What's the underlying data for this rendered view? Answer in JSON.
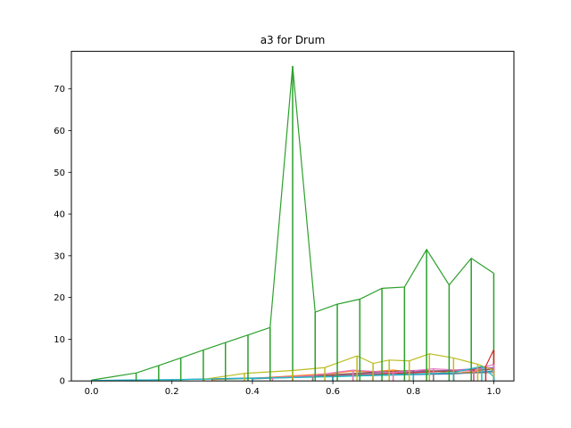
{
  "chart_data": {
    "type": "line",
    "title": "a3 for Drum",
    "xlabel": "",
    "ylabel": "",
    "xlim": [
      -0.05,
      1.05
    ],
    "ylim": [
      0,
      79
    ],
    "xticks": [
      0.0,
      0.2,
      0.4,
      0.6,
      0.8,
      1.0
    ],
    "xtick_labels": [
      "0.0",
      "0.2",
      "0.4",
      "0.6",
      "0.8",
      "1.0"
    ],
    "yticks": [
      0,
      10,
      20,
      30,
      40,
      50,
      60,
      70
    ],
    "ytick_labels": [
      "0",
      "10",
      "20",
      "30",
      "40",
      "50",
      "60",
      "70"
    ],
    "grid": false,
    "legend": "none",
    "series": [
      {
        "color": "#1f77b4",
        "x": [
          0.0,
          0.1,
          0.2,
          0.3,
          0.4,
          0.5,
          0.6,
          0.7,
          0.8,
          0.9,
          0.95,
          1.0
        ],
        "y": [
          0.1,
          0.2,
          0.3,
          0.5,
          0.7,
          0.9,
          1.1,
          1.3,
          1.5,
          1.7,
          2.0,
          2.4
        ]
      },
      {
        "color": "#ff7f0e",
        "x": [
          0.3,
          0.4,
          0.5,
          0.6,
          0.65,
          0.7,
          0.75,
          0.8,
          0.85,
          0.9,
          0.95,
          1.0
        ],
        "y": [
          0.3,
          0.6,
          1.2,
          1.8,
          2.4,
          2.2,
          2.6,
          2.0,
          2.4,
          1.8,
          2.2,
          3.0
        ]
      },
      {
        "color": "#2ca02c",
        "x": [
          0.0,
          0.111,
          0.167,
          0.222,
          0.278,
          0.333,
          0.389,
          0.444,
          0.5,
          0.556,
          0.611,
          0.667,
          0.722,
          0.778,
          0.833,
          0.889,
          0.944,
          1.0
        ],
        "y": [
          0.2,
          1.9,
          3.7,
          5.5,
          7.4,
          9.2,
          11.0,
          12.8,
          75.5,
          16.5,
          18.4,
          19.6,
          22.2,
          22.5,
          31.5,
          23.0,
          29.4,
          25.8
        ]
      },
      {
        "color": "#d62728",
        "x": [
          0.5,
          0.6,
          0.7,
          0.8,
          0.9,
          0.95,
          0.98,
          1.0
        ],
        "y": [
          0.8,
          1.2,
          1.6,
          2.0,
          2.4,
          2.8,
          3.5,
          7.5
        ]
      },
      {
        "color": "#9467bd",
        "x": [
          0.4,
          0.5,
          0.6,
          0.7,
          0.8,
          0.9,
          1.0
        ],
        "y": [
          0.6,
          1.0,
          1.4,
          1.9,
          2.2,
          2.6,
          3.2
        ]
      },
      {
        "color": "#8c564b",
        "x": [
          0.5,
          0.6,
          0.7,
          0.8,
          0.9,
          1.0
        ],
        "y": [
          0.9,
          1.5,
          2.1,
          2.5,
          2.3,
          2.8
        ]
      },
      {
        "color": "#e377c2",
        "x": [
          0.45,
          0.55,
          0.65,
          0.75,
          0.85,
          0.95,
          1.0
        ],
        "y": [
          0.7,
          1.3,
          2.6,
          2.0,
          2.9,
          2.4,
          4.0
        ]
      },
      {
        "color": "#7f7f7f",
        "x": [
          0.4,
          0.55,
          0.7,
          0.85,
          1.0
        ],
        "y": [
          0.5,
          1.0,
          1.5,
          1.8,
          2.0
        ]
      },
      {
        "color": "#bcbd22",
        "x": [
          0.28,
          0.38,
          0.5,
          0.58,
          0.66,
          0.7,
          0.74,
          0.79,
          0.84,
          0.9,
          0.96,
          1.0
        ],
        "y": [
          0.4,
          1.8,
          2.5,
          3.2,
          6.0,
          4.2,
          5.0,
          4.8,
          6.5,
          5.5,
          4.0,
          2.5
        ]
      },
      {
        "color": "#17becf",
        "x": [
          0.0,
          0.2,
          0.4,
          0.6,
          0.8,
          0.9,
          0.97,
          1.0
        ],
        "y": [
          0.1,
          0.3,
          0.6,
          1.0,
          1.6,
          2.0,
          3.5,
          1.0
        ]
      }
    ]
  }
}
